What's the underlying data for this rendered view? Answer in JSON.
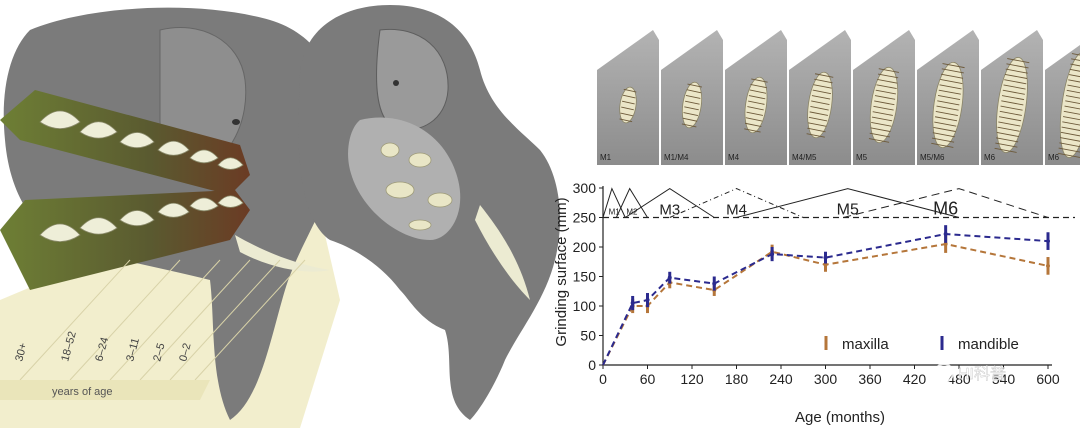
{
  "age_bands": {
    "labels": [
      "30+",
      "18–52",
      "6–24",
      "3–11",
      "2–5",
      "0–2"
    ],
    "axis_label": "years of age"
  },
  "molar_panels": [
    "M1",
    "M1/M4",
    "M4",
    "M4/M5",
    "M5",
    "M5/M6",
    "M6",
    "M6"
  ],
  "chart_data": {
    "type": "line",
    "xlabel": "Age (months)",
    "ylabel": "Grinding surface (mm)",
    "xlim": [
      0,
      600
    ],
    "ylim": [
      0,
      300
    ],
    "xticks": [
      0,
      60,
      120,
      180,
      240,
      300,
      360,
      420,
      480,
      540,
      600
    ],
    "xtick_labels": [
      "0",
      "60",
      "120",
      "180",
      "240",
      "300",
      "360",
      "420",
      "480",
      "540",
      "600"
    ],
    "yticks": [
      0,
      50,
      100,
      150,
      200,
      250,
      300
    ],
    "ytick_labels": [
      "0",
      "50",
      "100",
      "150",
      "200",
      "250",
      "300"
    ],
    "molar_lifespans": [
      {
        "label": "M1",
        "start": 0,
        "peak": 12,
        "end": 30
      },
      {
        "label": "M2",
        "start": 18,
        "peak": 36,
        "end": 60
      },
      {
        "label": "M3",
        "start": 30,
        "peak": 90,
        "end": 150
      },
      {
        "label": "M4",
        "start": 90,
        "peak": 180,
        "end": 270
      },
      {
        "label": "M5",
        "start": 180,
        "peak": 330,
        "end": 480
      },
      {
        "label": "M6",
        "start": 324,
        "peak": 480,
        "end": 600
      }
    ],
    "series": [
      {
        "name": "maxilla",
        "color": "#b5763a",
        "x": [
          0,
          40,
          60,
          90,
          150,
          228,
          300,
          462,
          600
        ],
        "y": [
          0,
          100,
          100,
          140,
          127,
          192,
          170,
          205,
          168
        ],
        "err": [
          0,
          12,
          12,
          10,
          10,
          12,
          12,
          15,
          15
        ]
      },
      {
        "name": "mandible",
        "color": "#2b2a8e",
        "x": [
          0,
          40,
          60,
          90,
          150,
          228,
          300,
          462,
          600
        ],
        "y": [
          0,
          105,
          110,
          148,
          138,
          188,
          182,
          222,
          210
        ],
        "err": [
          0,
          12,
          12,
          10,
          12,
          12,
          10,
          15,
          15
        ]
      }
    ],
    "legend_position": "bottom-right"
  },
  "watermark": "HI科普",
  "colors": {
    "elephant_dark": "#7c7c7c",
    "elephant_light": "#a6a6a6",
    "band_green": "#6d7d36",
    "tusk": "#ecebd2",
    "molar_bg": "#9a9a9a"
  }
}
